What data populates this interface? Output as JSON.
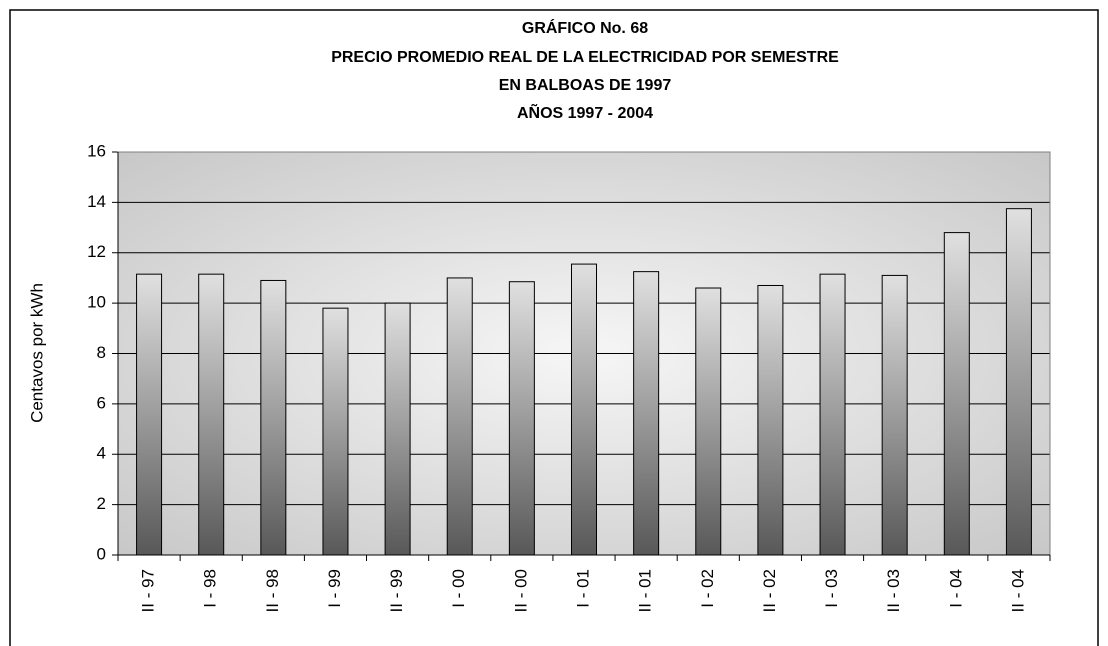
{
  "chart_data": {
    "type": "bar",
    "title": [
      "GRÁFICO No.  68",
      "PRECIO PROMEDIO REAL DE LA ELECTRICIDAD POR SEMESTRE",
      "EN BALBOAS DE 1997",
      "AÑOS  1997 - 2004"
    ],
    "y_label": "Centavos por kWh",
    "categories": [
      "II - 97",
      "I - 98",
      "II - 98",
      "I - 99",
      "II - 99",
      "I - 00",
      "II - 00",
      "I - 01",
      "II - 01",
      "I - 02",
      "II - 02",
      "I - 03",
      "II - 03",
      "I - 04",
      "II - 04"
    ],
    "values": [
      11.15,
      11.15,
      10.9,
      9.8,
      10.0,
      11.0,
      10.85,
      11.55,
      11.25,
      10.6,
      10.7,
      11.15,
      11.1,
      12.8,
      13.75
    ],
    "ylim": [
      0,
      16
    ],
    "yticks": [
      0,
      2,
      4,
      6,
      8,
      10,
      12,
      14,
      16
    ],
    "grid": true
  }
}
